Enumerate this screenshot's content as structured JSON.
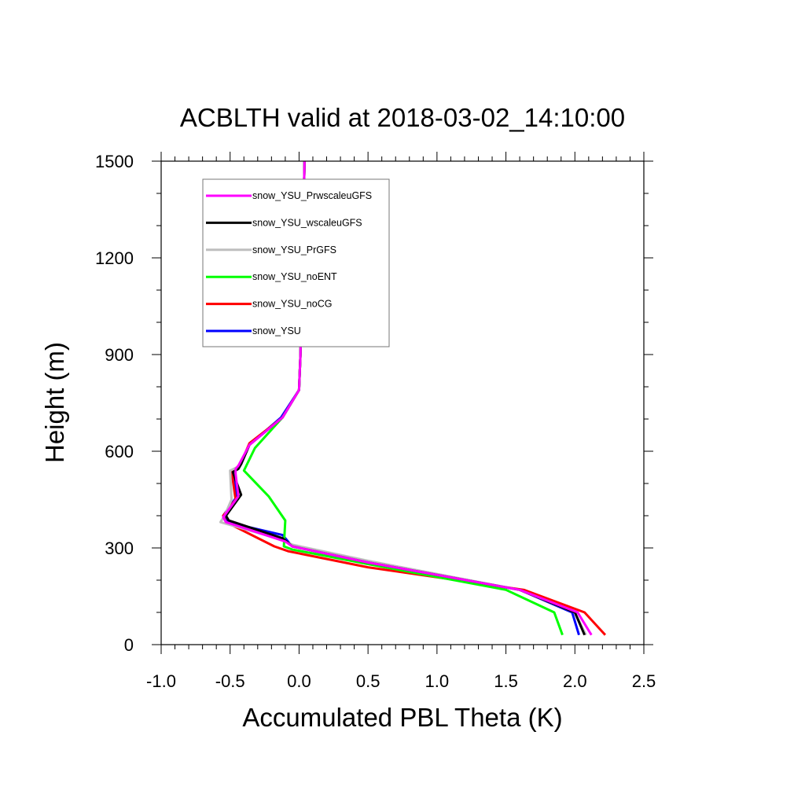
{
  "chart_data": {
    "type": "line",
    "title": "ACBLTH valid at 2018-03-02_14:10:00",
    "xlabel": "Accumulated PBL Theta (K)",
    "ylabel": "Height (m)",
    "xlim": [
      -1.0,
      2.5
    ],
    "ylim": [
      0,
      1500
    ],
    "xticks": [
      "-1.0",
      "-0.5",
      "0.0",
      "0.5",
      "1.0",
      "1.5",
      "2.0",
      "2.5"
    ],
    "xtick_values": [
      -1.0,
      -0.5,
      0.0,
      0.5,
      1.0,
      1.5,
      2.0,
      2.5
    ],
    "yticks": [
      "0",
      "300",
      "600",
      "900",
      "1200",
      "1500"
    ],
    "ytick_values": [
      0,
      300,
      600,
      900,
      1200,
      1500
    ],
    "grid": false,
    "legend_position": "top-left",
    "series": [
      {
        "name": "snow_YSU",
        "color": "#0000ff",
        "points": [
          [
            2.03,
            30
          ],
          [
            1.98,
            100
          ],
          [
            1.6,
            170
          ],
          [
            0.5,
            255
          ],
          [
            -0.05,
            305
          ],
          [
            -0.12,
            340
          ],
          [
            -0.52,
            380
          ],
          [
            -0.55,
            400
          ],
          [
            -0.45,
            460
          ],
          [
            -0.48,
            535
          ],
          [
            -0.45,
            545
          ],
          [
            -0.42,
            560
          ],
          [
            -0.36,
            620
          ],
          [
            -0.13,
            705
          ],
          [
            0.0,
            790
          ],
          [
            0.01,
            900
          ],
          [
            0.02,
            1100
          ],
          [
            0.03,
            1300
          ],
          [
            0.04,
            1500
          ]
        ]
      },
      {
        "name": "snow_YSU_noCG",
        "color": "#ff0000",
        "points": [
          [
            2.22,
            30
          ],
          [
            2.07,
            100
          ],
          [
            1.63,
            170
          ],
          [
            0.5,
            240
          ],
          [
            -0.08,
            290
          ],
          [
            -0.18,
            305
          ],
          [
            -0.53,
            380
          ],
          [
            -0.55,
            400
          ],
          [
            -0.46,
            450
          ],
          [
            -0.49,
            540
          ],
          [
            -0.45,
            550
          ],
          [
            -0.42,
            565
          ],
          [
            -0.36,
            625
          ],
          [
            -0.12,
            705
          ],
          [
            0.0,
            790
          ],
          [
            0.01,
            900
          ],
          [
            0.02,
            1100
          ],
          [
            0.03,
            1300
          ],
          [
            0.04,
            1500
          ]
        ]
      },
      {
        "name": "snow_YSU_noENT",
        "color": "#00ff00",
        "points": [
          [
            1.91,
            30
          ],
          [
            1.85,
            100
          ],
          [
            1.5,
            170
          ],
          [
            0.5,
            250
          ],
          [
            -0.05,
            295
          ],
          [
            -0.11,
            305
          ],
          [
            -0.1,
            385
          ],
          [
            -0.22,
            460
          ],
          [
            -0.4,
            540
          ],
          [
            -0.32,
            610
          ],
          [
            -0.12,
            705
          ],
          [
            0.0,
            790
          ],
          [
            0.01,
            900
          ],
          [
            0.02,
            1100
          ],
          [
            0.03,
            1300
          ],
          [
            0.04,
            1500
          ]
        ]
      },
      {
        "name": "snow_YSU_PrGFS",
        "color": "#bebebe",
        "points": [
          [
            2.08,
            30
          ],
          [
            2.0,
            100
          ],
          [
            1.6,
            170
          ],
          [
            0.5,
            260
          ],
          [
            -0.05,
            310
          ],
          [
            -0.12,
            325
          ],
          [
            -0.57,
            380
          ],
          [
            -0.54,
            400
          ],
          [
            -0.49,
            450
          ],
          [
            -0.5,
            540
          ],
          [
            -0.45,
            550
          ],
          [
            -0.42,
            560
          ],
          [
            -0.36,
            620
          ],
          [
            -0.12,
            705
          ],
          [
            0.0,
            790
          ],
          [
            0.01,
            900
          ],
          [
            0.02,
            1100
          ],
          [
            0.03,
            1300
          ],
          [
            0.04,
            1500
          ]
        ]
      },
      {
        "name": "snow_YSU_wscaleuGFS",
        "color": "#000000",
        "points": [
          [
            2.07,
            30
          ],
          [
            2.0,
            100
          ],
          [
            1.6,
            170
          ],
          [
            0.5,
            255
          ],
          [
            -0.05,
            305
          ],
          [
            -0.12,
            330
          ],
          [
            -0.51,
            385
          ],
          [
            -0.53,
            400
          ],
          [
            -0.42,
            465
          ],
          [
            -0.48,
            535
          ],
          [
            -0.44,
            545
          ],
          [
            -0.42,
            560
          ],
          [
            -0.36,
            620
          ],
          [
            -0.12,
            705
          ],
          [
            0.0,
            790
          ],
          [
            0.01,
            900
          ],
          [
            0.02,
            1100
          ],
          [
            0.03,
            1300
          ],
          [
            0.04,
            1500
          ]
        ]
      },
      {
        "name": "snow_YSU_PrwscaleuGFS",
        "color": "#ff00ff",
        "points": [
          [
            2.12,
            30
          ],
          [
            2.02,
            100
          ],
          [
            1.6,
            170
          ],
          [
            0.5,
            255
          ],
          [
            -0.05,
            305
          ],
          [
            -0.1,
            320
          ],
          [
            -0.53,
            380
          ],
          [
            -0.55,
            395
          ],
          [
            -0.44,
            460
          ],
          [
            -0.46,
            530
          ],
          [
            -0.46,
            545
          ],
          [
            -0.44,
            555
          ],
          [
            -0.36,
            620
          ],
          [
            -0.12,
            705
          ],
          [
            0.0,
            790
          ],
          [
            0.01,
            900
          ],
          [
            0.02,
            1100
          ],
          [
            0.03,
            1300
          ],
          [
            0.04,
            1500
          ]
        ]
      }
    ],
    "legend_order": [
      "snow_YSU_PrwscaleuGFS",
      "snow_YSU_wscaleuGFS",
      "snow_YSU_PrGFS",
      "snow_YSU_noENT",
      "snow_YSU_noCG",
      "snow_YSU"
    ]
  }
}
